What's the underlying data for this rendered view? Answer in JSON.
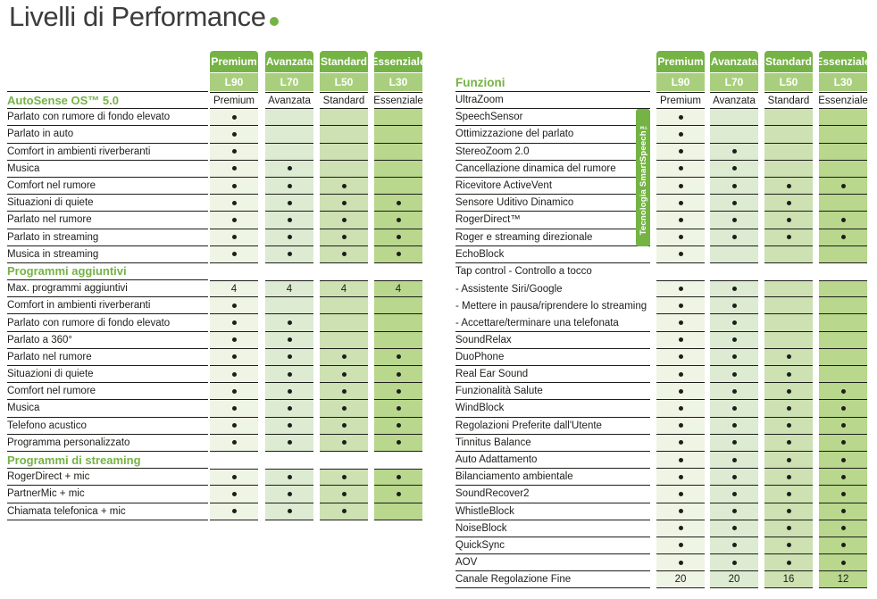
{
  "title": {
    "text": "Livelli di Performance"
  },
  "levels": [
    {
      "name": "Premium",
      "code": "L90"
    },
    {
      "name": "Avanzata",
      "code": "L70"
    },
    {
      "name": "Standard",
      "code": "L50"
    },
    {
      "name": "Essenziale",
      "code": "L30"
    }
  ],
  "colors": {
    "accent_green": "#75b345",
    "header_band_light": "#a9cf7e",
    "column_tints": [
      "#eff5e5",
      "#ddebd2",
      "#cde1b2",
      "#b9d78d"
    ],
    "line": "#1d1d1b",
    "title_text": "#3c3c3b",
    "dot": "#1d1d1b"
  },
  "left_table": {
    "rows": [
      {
        "l": "AutoSense OS™ 5.0",
        "green": true,
        "wc": true,
        "c": [
          "Premium",
          "Avanzata",
          "Standard",
          "Essenziale"
        ]
      },
      {
        "l": "Parlato con rumore di fondo elevato",
        "c": [
          "dot",
          "",
          "",
          ""
        ]
      },
      {
        "l": "Parlato in auto",
        "c": [
          "dot",
          "",
          "",
          ""
        ]
      },
      {
        "l": "Comfort in ambienti riverberanti",
        "c": [
          "dot",
          "",
          "",
          ""
        ]
      },
      {
        "l": "Musica",
        "c": [
          "dot",
          "dot",
          "",
          ""
        ]
      },
      {
        "l": "Comfort nel rumore",
        "c": [
          "dot",
          "dot",
          "dot",
          ""
        ]
      },
      {
        "l": "Situazioni di quiete",
        "c": [
          "dot",
          "dot",
          "dot",
          "dot"
        ]
      },
      {
        "l": "Parlato nel rumore",
        "c": [
          "dot",
          "dot",
          "dot",
          "dot"
        ]
      },
      {
        "l": "Parlato in streaming",
        "c": [
          "dot",
          "dot",
          "dot",
          "dot"
        ]
      },
      {
        "l": "Musica in streaming",
        "c": [
          "dot",
          "dot",
          "dot",
          "dot"
        ]
      },
      {
        "l": "Programmi aggiuntivi",
        "green": true,
        "c": null
      },
      {
        "l": "Max. programmi aggiuntivi",
        "c": [
          "4",
          "4",
          "4",
          "4"
        ]
      },
      {
        "l": "Comfort in ambienti riverberanti",
        "c": [
          "dot",
          "",
          "",
          ""
        ]
      },
      {
        "l": "Parlato con rumore di fondo elevato",
        "c": [
          "dot",
          "dot",
          "",
          ""
        ]
      },
      {
        "l": "Parlato a 360°",
        "c": [
          "dot",
          "dot",
          "",
          ""
        ]
      },
      {
        "l": "Parlato nel rumore",
        "c": [
          "dot",
          "dot",
          "dot",
          "dot"
        ]
      },
      {
        "l": "Situazioni di quiete",
        "c": [
          "dot",
          "dot",
          "dot",
          "dot"
        ]
      },
      {
        "l": "Comfort nel rumore",
        "c": [
          "dot",
          "dot",
          "dot",
          "dot"
        ]
      },
      {
        "l": "Musica",
        "c": [
          "dot",
          "dot",
          "dot",
          "dot"
        ]
      },
      {
        "l": "Telefono acustico",
        "c": [
          "dot",
          "dot",
          "dot",
          "dot"
        ]
      },
      {
        "l": "Programma personalizzato",
        "c": [
          "dot",
          "dot",
          "dot",
          "dot"
        ]
      },
      {
        "l": "Programmi di streaming",
        "green": true,
        "c": null
      },
      {
        "l": "RogerDirect + mic",
        "c": [
          "dot",
          "dot",
          "dot",
          "dot"
        ]
      },
      {
        "l": "PartnerMic + mic",
        "c": [
          "dot",
          "dot",
          "dot",
          "dot"
        ]
      },
      {
        "l": "Chiamata telefonica + mic",
        "c": [
          "dot",
          "dot",
          "dot",
          ""
        ]
      }
    ]
  },
  "right_table": {
    "title": "Funzioni",
    "side_label": "Tecnologia SmartSpeech™",
    "rows": [
      {
        "l": "UltraZoom",
        "wc": true,
        "c": [
          "Premium",
          "Avanzata",
          "Standard",
          "Essenziale"
        ]
      },
      {
        "l": "SpeechSensor",
        "c": [
          "dot",
          "",
          "",
          ""
        ]
      },
      {
        "l": "Ottimizzazione del parlato",
        "c": [
          "dot",
          "",
          "",
          ""
        ]
      },
      {
        "l": "StereoZoom 2.0",
        "c": [
          "dot",
          "dot",
          "",
          ""
        ]
      },
      {
        "l": "Cancellazione dinamica del rumore",
        "c": [
          "dot",
          "dot",
          "",
          ""
        ]
      },
      {
        "l": "Ricevitore ActiveVent",
        "c": [
          "dot",
          "dot",
          "dot",
          "dot"
        ]
      },
      {
        "l": "Sensore Uditivo Dinamico",
        "c": [
          "dot",
          "dot",
          "dot",
          ""
        ]
      },
      {
        "l": "RogerDirect™",
        "c": [
          "dot",
          "dot",
          "dot",
          "dot"
        ]
      },
      {
        "l": "Roger e streaming direzionale",
        "c": [
          "dot",
          "dot",
          "dot",
          "dot"
        ]
      },
      {
        "l": "EchoBlock",
        "c": [
          "dot",
          "",
          "",
          ""
        ]
      },
      {
        "l": "Tap control - Controllo a tocco",
        "lb": false,
        "c": null
      },
      {
        "l": "- Assistente Siri/Google",
        "lb": false,
        "c": [
          "dot",
          "dot",
          "",
          ""
        ]
      },
      {
        "l": "- Mettere in pausa/riprendere lo streaming",
        "lb": false,
        "c": [
          "dot",
          "dot",
          "",
          ""
        ]
      },
      {
        "l": "- Accettare/terminare una telefonata",
        "c": [
          "dot",
          "dot",
          "",
          ""
        ]
      },
      {
        "l": "SoundRelax",
        "c": [
          "dot",
          "dot",
          "",
          ""
        ]
      },
      {
        "l": "DuoPhone",
        "c": [
          "dot",
          "dot",
          "dot",
          ""
        ]
      },
      {
        "l": "Real Ear Sound",
        "c": [
          "dot",
          "dot",
          "dot",
          ""
        ]
      },
      {
        "l": "Funzionalità Salute",
        "c": [
          "dot",
          "dot",
          "dot",
          "dot"
        ]
      },
      {
        "l": "WindBlock",
        "c": [
          "dot",
          "dot",
          "dot",
          "dot"
        ]
      },
      {
        "l": "Regolazioni Preferite dall'Utente",
        "c": [
          "dot",
          "dot",
          "dot",
          "dot"
        ]
      },
      {
        "l": "Tinnitus Balance",
        "c": [
          "dot",
          "dot",
          "dot",
          "dot"
        ]
      },
      {
        "l": "Auto Adattamento",
        "c": [
          "dot",
          "dot",
          "dot",
          "dot"
        ]
      },
      {
        "l": "Bilanciamento ambientale",
        "c": [
          "dot",
          "dot",
          "dot",
          "dot"
        ]
      },
      {
        "l": "SoundRecover2",
        "c": [
          "dot",
          "dot",
          "dot",
          "dot"
        ]
      },
      {
        "l": "WhistleBlock",
        "c": [
          "dot",
          "dot",
          "dot",
          "dot"
        ]
      },
      {
        "l": "NoiseBlock",
        "c": [
          "dot",
          "dot",
          "dot",
          "dot"
        ]
      },
      {
        "l": "QuickSync",
        "c": [
          "dot",
          "dot",
          "dot",
          "dot"
        ]
      },
      {
        "l": "AOV",
        "c": [
          "dot",
          "dot",
          "dot",
          "dot"
        ]
      },
      {
        "l": "Canale Regolazione Fine",
        "c": [
          "20",
          "20",
          "16",
          "12"
        ]
      }
    ]
  }
}
